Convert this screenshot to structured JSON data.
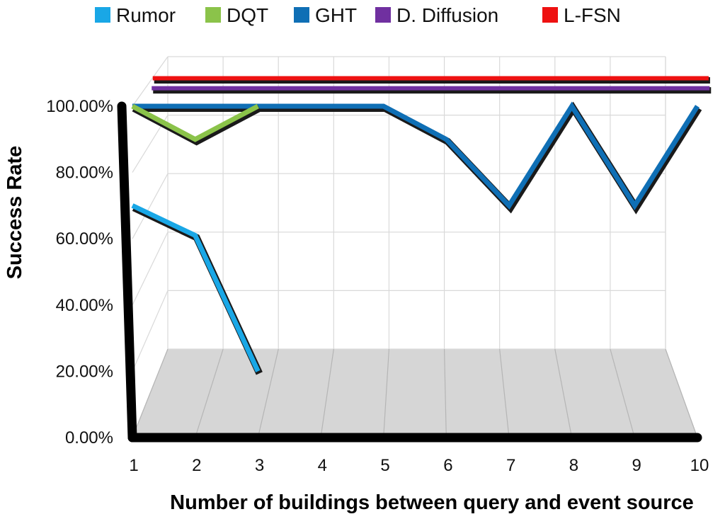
{
  "chart_data": {
    "type": "line",
    "style": "3d",
    "title": "",
    "xlabel": "Number of buildings between query and event source",
    "ylabel": "Success Rate",
    "categories": [
      "1",
      "2",
      "3",
      "4",
      "5",
      "6",
      "7",
      "8",
      "9",
      "10"
    ],
    "ylim": [
      0,
      100
    ],
    "yticks": [
      "0.00%",
      "20.00%",
      "40.00%",
      "60.00%",
      "80.00%",
      "100.00%"
    ],
    "grid": true,
    "legend_position": "top",
    "series": [
      {
        "name": "Rumor",
        "color": "#19a7e6",
        "values": [
          70,
          61,
          20,
          null,
          null,
          null,
          null,
          null,
          null,
          null
        ]
      },
      {
        "name": "DQT",
        "color": "#8bc34a",
        "values": [
          100,
          90,
          100,
          null,
          null,
          null,
          null,
          null,
          null,
          null
        ]
      },
      {
        "name": "GHT",
        "color": "#0f6fb5",
        "values": [
          100,
          100,
          100,
          100,
          100,
          90,
          70,
          100,
          70,
          100
        ]
      },
      {
        "name": "D. Diffusion",
        "color": "#7030a0",
        "values": [
          100,
          100,
          100,
          100,
          100,
          100,
          100,
          100,
          100,
          100
        ]
      },
      {
        "name": "L-FSN",
        "color": "#ee1111",
        "values": [
          100,
          100,
          100,
          100,
          100,
          100,
          100,
          100,
          100,
          100
        ]
      }
    ]
  }
}
